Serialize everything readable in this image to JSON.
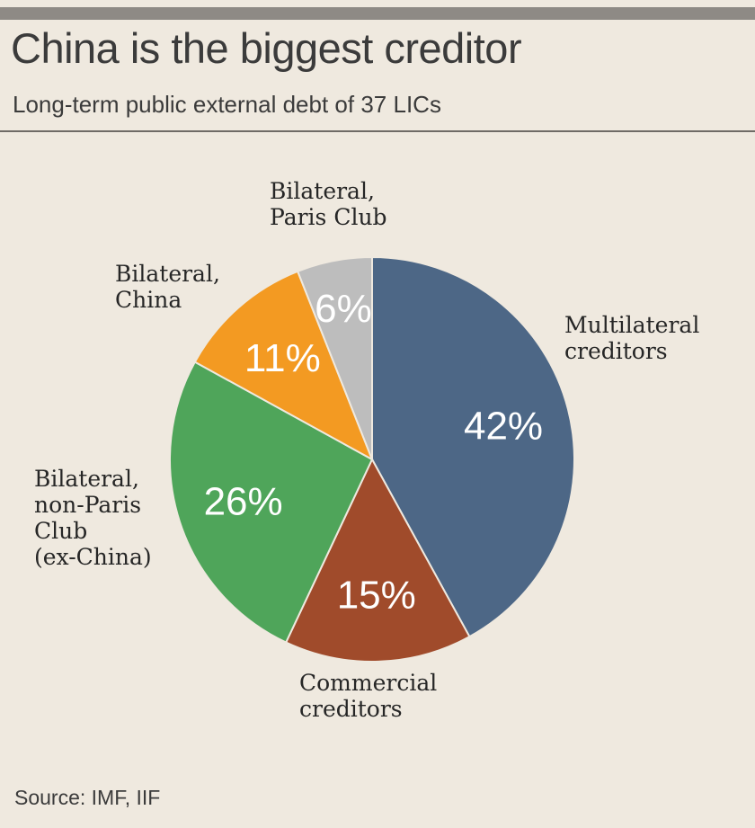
{
  "chart_data": {
    "type": "pie",
    "title": "China is the biggest creditor",
    "subtitle": "Long-term public external debt of 37 LICs",
    "slices": [
      {
        "label": "Multilateral\ncreditors",
        "value": 42,
        "display": "42%",
        "color": "#4d6786"
      },
      {
        "label": "Commercial\ncreditors",
        "value": 15,
        "display": "15%",
        "color": "#a04b2b"
      },
      {
        "label": "Bilateral,\nnon-Paris\nClub\n(ex-China)",
        "value": 26,
        "display": "26%",
        "color": "#4fa55a"
      },
      {
        "label": "Bilateral,\nChina",
        "value": 11,
        "display": "11%",
        "color": "#f39a22"
      },
      {
        "label": "Bilateral,\nParis Club",
        "value": 6,
        "display": "6%",
        "color": "#bdbdbd"
      }
    ],
    "source": "Source: IMF, IIF"
  }
}
